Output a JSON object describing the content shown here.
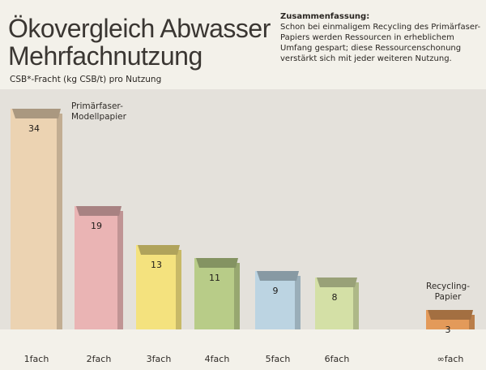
{
  "title": "Ökovergleich Abwasser Mehrfachnutzung",
  "subtitle": "CSB*-Fracht (kg CSB/t) pro Nutzung",
  "summary": {
    "heading": "Zusammenfassung:",
    "text": "Schon bei einmaligem Recycling des Primärfaser-Papiers werden Ressourcen in erheblichem Umfang gespart; diese Ressourcenschonung verstärkt sich mit jeder weiteren Nutzung."
  },
  "chart_data": {
    "type": "bar",
    "categories": [
      "1fach",
      "2fach",
      "3fach",
      "4fach",
      "5fach",
      "6fach",
      "∞fach"
    ],
    "values": [
      34,
      19,
      13,
      11,
      9,
      8,
      3
    ],
    "ylabel": "CSB*-Fracht (kg CSB/t) pro Nutzung",
    "grid": false,
    "colors": [
      "#ecd3b2",
      "#eab4b4",
      "#f4e27e",
      "#b8cc88",
      "#bcd4e2",
      "#d4e0a6",
      "#e39a5a"
    ],
    "annotations": [
      {
        "category": "1fach",
        "lines": [
          "Primärfaser-",
          "Modellpapier"
        ]
      },
      {
        "category": "∞fach",
        "lines": [
          "Recycling-",
          "Papier"
        ]
      }
    ]
  }
}
